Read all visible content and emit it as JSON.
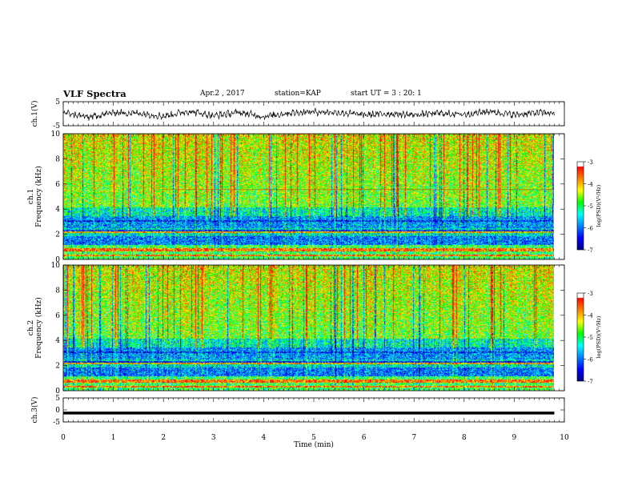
{
  "header": {
    "title": "VLF Spectra",
    "date": "Apr.2 , 2017",
    "station": "station=KAP",
    "start": "start UT = 3 : 20: 1"
  },
  "colors": {
    "spectrogram_palette": [
      "#000080",
      "#0000ff",
      "#0080ff",
      "#00ffff",
      "#00ff00",
      "#ffff00",
      "#ff8000",
      "#ff0000",
      "#ffffff"
    ],
    "waveform": "#000000",
    "axis": "#000000"
  },
  "chart_data": [
    {
      "type": "line",
      "title": "VLF Spectra",
      "ylabel": "ch.1(V)",
      "xlabel": "",
      "x_range": [
        0,
        10
      ],
      "ylim": [
        -5,
        5
      ],
      "y_ticks": [
        "5",
        "-5"
      ],
      "description_of_series": "noisy waveform around 0 V from 0 to 9.8 min",
      "series": [
        {
          "x": [
            0,
            0.5,
            1,
            1.5,
            2,
            2.5,
            3,
            3.5,
            4,
            4.5,
            5,
            5.5,
            6,
            6.5,
            7,
            7.5,
            8,
            8.5,
            9,
            9.5,
            9.8
          ],
          "y": [
            0.5,
            -1.5,
            0.5,
            0.2,
            -1.0,
            1.0,
            -0.8,
            0.5,
            -1.2,
            0.3,
            0.8,
            0.5,
            -0.5,
            0.0,
            -0.5,
            0.2,
            -0.3,
            1.0,
            -0.5,
            0.5,
            0.2
          ]
        }
      ]
    },
    {
      "type": "heatmap",
      "ylabel": "ch.1\nFrequency (kHz)",
      "x_range": [
        0,
        10
      ],
      "data_end_min": 9.8,
      "ylim": [
        0,
        10
      ],
      "y_ticks": [
        "0",
        "2",
        "4",
        "6",
        "8",
        "10"
      ],
      "colorbar": {
        "label": "log(PSD)(V²/Hz)",
        "ticks": [
          "-3",
          "-4",
          "-5",
          "-6",
          "-7"
        ],
        "range": [
          -7,
          -3
        ]
      }
    },
    {
      "type": "heatmap",
      "ylabel": "ch.2\nFrequency (kHz)",
      "x_range": [
        0,
        10
      ],
      "data_end_min": 9.8,
      "ylim": [
        0,
        10
      ],
      "y_ticks": [
        "0",
        "2",
        "4",
        "6",
        "8",
        "10"
      ],
      "colorbar": {
        "label": "log(PSD)(V²/Hz)",
        "ticks": [
          "-3",
          "-4",
          "-5",
          "-6",
          "-7"
        ],
        "range": [
          -7,
          -3
        ]
      }
    },
    {
      "type": "line",
      "ylabel": "ch.3(V)",
      "xlabel": "Time (min)",
      "x_range": [
        0,
        10
      ],
      "x_ticks": [
        "0",
        "1",
        "2",
        "3",
        "4",
        "5",
        "6",
        "7",
        "8",
        "9",
        "10"
      ],
      "ylim": [
        -5,
        5
      ],
      "y_ticks": [
        "5",
        "0",
        "-5"
      ],
      "series": [
        {
          "x": [
            0,
            9.8
          ],
          "y": [
            -1.3,
            -1.3
          ]
        }
      ]
    }
  ]
}
